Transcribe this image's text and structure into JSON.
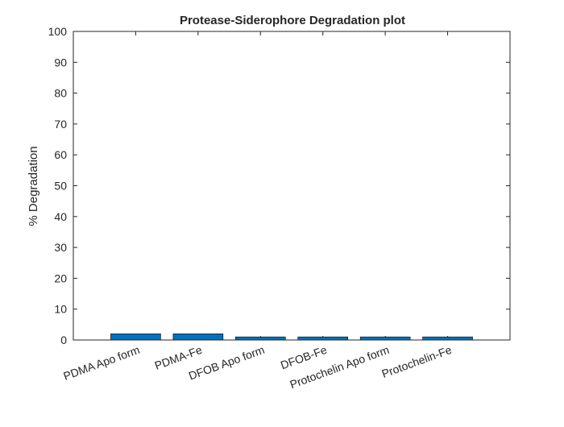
{
  "chart_data": {
    "type": "bar",
    "title": "Protease-Siderophore Degradation plot",
    "xlabel": "",
    "ylabel": "% Degradation",
    "categories": [
      "PDMA Apo form",
      "PDMA-Fe",
      "DFOB Apo form",
      "DFOB-Fe",
      "Protochelin Apo form",
      "Protochelin-Fe"
    ],
    "values": [
      2,
      2,
      1,
      1,
      1,
      1
    ],
    "ylim": [
      0,
      100
    ],
    "yticks": [
      0,
      10,
      20,
      30,
      40,
      50,
      60,
      70,
      80,
      90,
      100
    ],
    "grid": false,
    "bar_color": "#0072BD",
    "axis_color": "#262626"
  }
}
